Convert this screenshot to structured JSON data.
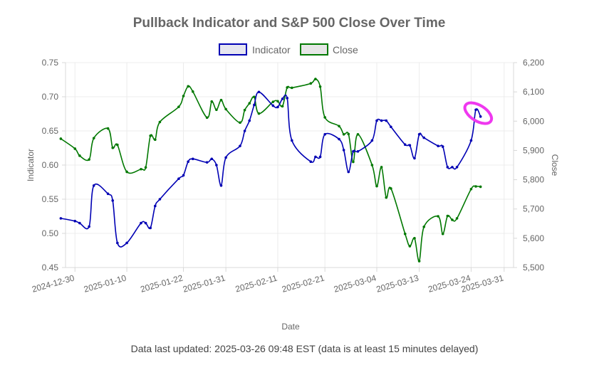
{
  "chart_data": {
    "type": "line",
    "title": "Pullback Indicator and S&P 500 Close Over Time",
    "xlabel": "Date",
    "ylabel_left": "Indicator",
    "ylabel_right": "Close",
    "x_range": [
      "2024-12-28",
      "2025-04-02"
    ],
    "x_tick_labels": [
      "2024-12-30",
      "2025-01-10",
      "2025-01-22",
      "2025-01-31",
      "2025-02-11",
      "2025-02-21",
      "2025-03-04",
      "2025-03-13",
      "2025-03-24",
      "2025-03-31"
    ],
    "y_left": {
      "min": 0.45,
      "max": 0.75,
      "ticks": [
        "0.45",
        "0.50",
        "0.55",
        "0.60",
        "0.65",
        "0.70",
        "0.75"
      ]
    },
    "y_right": {
      "min": 5500,
      "max": 6200,
      "ticks": [
        "5,500",
        "5,600",
        "5,700",
        "5,800",
        "5,900",
        "6,000",
        "6,100",
        "6,200"
      ]
    },
    "legend_position": "top-center",
    "series": [
      {
        "name": "Indicator",
        "axis": "left",
        "color": "#0000b4",
        "dates": [
          "2024-12-27",
          "2024-12-30",
          "2024-12-31",
          "2025-01-02",
          "2025-01-03",
          "2025-01-06",
          "2025-01-07",
          "2025-01-08",
          "2025-01-10",
          "2025-01-13",
          "2025-01-14",
          "2025-01-15",
          "2025-01-16",
          "2025-01-17",
          "2025-01-21",
          "2025-01-22",
          "2025-01-23",
          "2025-01-24",
          "2025-01-27",
          "2025-01-28",
          "2025-01-29",
          "2025-01-30",
          "2025-01-31",
          "2025-02-03",
          "2025-02-04",
          "2025-02-05",
          "2025-02-06",
          "2025-02-07",
          "2025-02-10",
          "2025-02-11",
          "2025-02-12",
          "2025-02-13",
          "2025-02-14",
          "2025-02-18",
          "2025-02-19",
          "2025-02-20",
          "2025-02-21",
          "2025-02-24",
          "2025-02-25",
          "2025-02-26",
          "2025-02-27",
          "2025-02-28",
          "2025-03-03",
          "2025-03-04",
          "2025-03-05",
          "2025-03-06",
          "2025-03-07",
          "2025-03-10",
          "2025-03-11",
          "2025-03-12",
          "2025-03-13",
          "2025-03-14",
          "2025-03-17",
          "2025-03-18",
          "2025-03-19",
          "2025-03-20",
          "2025-03-21",
          "2025-03-24",
          "2025-03-25",
          "2025-03-26"
        ],
        "values": [
          0.522,
          0.518,
          0.515,
          0.51,
          0.57,
          0.558,
          0.548,
          0.486,
          0.486,
          0.515,
          0.515,
          0.508,
          0.54,
          0.55,
          0.58,
          0.585,
          0.605,
          0.609,
          0.604,
          0.609,
          0.6,
          0.57,
          0.611,
          0.628,
          0.65,
          0.665,
          0.688,
          0.707,
          0.687,
          0.685,
          0.697,
          0.698,
          0.636,
          0.605,
          0.612,
          0.612,
          0.645,
          0.638,
          0.622,
          0.59,
          0.62,
          0.62,
          0.636,
          0.665,
          0.665,
          0.665,
          0.656,
          0.63,
          0.629,
          0.61,
          0.645,
          0.64,
          0.628,
          0.627,
          0.597,
          0.597,
          0.597,
          0.636,
          0.681,
          0.671
        ]
      },
      {
        "name": "Close",
        "axis": "right",
        "color": "#007800",
        "dates": [
          "2024-12-27",
          "2024-12-30",
          "2024-12-31",
          "2025-01-02",
          "2025-01-03",
          "2025-01-06",
          "2025-01-07",
          "2025-01-08",
          "2025-01-10",
          "2025-01-13",
          "2025-01-14",
          "2025-01-15",
          "2025-01-16",
          "2025-01-17",
          "2025-01-21",
          "2025-01-22",
          "2025-01-23",
          "2025-01-24",
          "2025-01-27",
          "2025-01-28",
          "2025-01-29",
          "2025-01-30",
          "2025-01-31",
          "2025-02-03",
          "2025-02-04",
          "2025-02-05",
          "2025-02-06",
          "2025-02-07",
          "2025-02-10",
          "2025-02-11",
          "2025-02-12",
          "2025-02-13",
          "2025-02-14",
          "2025-02-18",
          "2025-02-19",
          "2025-02-20",
          "2025-02-21",
          "2025-02-24",
          "2025-02-25",
          "2025-02-26",
          "2025-02-27",
          "2025-02-28",
          "2025-03-03",
          "2025-03-04",
          "2025-03-05",
          "2025-03-06",
          "2025-03-07",
          "2025-03-10",
          "2025-03-11",
          "2025-03-12",
          "2025-03-13",
          "2025-03-14",
          "2025-03-17",
          "2025-03-18",
          "2025-03-19",
          "2025-03-20",
          "2025-03-21",
          "2025-03-24",
          "2025-03-25",
          "2025-03-26"
        ],
        "values": [
          5940,
          5906,
          5882,
          5869,
          5942,
          5975,
          5909,
          5919,
          5827,
          5836,
          5842,
          5950,
          5937,
          5997,
          6049,
          6086,
          6119,
          6101,
          6012,
          6067,
          6039,
          6072,
          6041,
          5995,
          6038,
          6061,
          6083,
          6026,
          6066,
          6068,
          6051,
          6115,
          6114,
          6129,
          6144,
          6118,
          6013,
          5983,
          5955,
          5956,
          5861,
          5955,
          5850,
          5778,
          5843,
          5739,
          5770,
          5615,
          5573,
          5600,
          5522,
          5639,
          5675,
          5615,
          5676,
          5663,
          5668,
          5768,
          5777,
          5776
        ]
      }
    ],
    "annotation": {
      "type": "highlight-ellipse",
      "color": "#ef38ef",
      "around": "Indicator 2025-03-25 to 2025-03-26"
    }
  },
  "footer": {
    "note": "Data last updated: 2025-03-26 09:48 EST (data is at least 15 minutes delayed)"
  }
}
